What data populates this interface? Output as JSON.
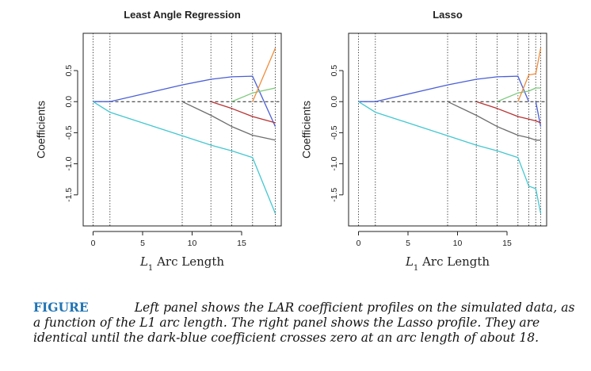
{
  "caption": {
    "label": "FIGURE",
    "text": "Left panel shows the LAR coefficient profiles on the simulated data, as a function of the L1 arc length. The right panel shows the Lasso profile. They are identical until the dark-blue coefficient crosses zero at an arc length of about 18."
  },
  "chart_data": [
    {
      "type": "line",
      "title": "Least Angle Regression",
      "xlabel": "L1 Arc Length",
      "ylabel": "Coefficients",
      "xlim": [
        -1,
        19
      ],
      "ylim": [
        -2.0,
        1.1
      ],
      "xticks": [
        0,
        5,
        10,
        15
      ],
      "yticks": [
        -1.5,
        -1.0,
        -0.5,
        0.0,
        0.5
      ],
      "ytick_labels": [
        "-1.5",
        "-1.0",
        "-0.5",
        "0.0",
        "0.5"
      ],
      "zero_line": true,
      "step_lines_x": [
        0,
        1.7,
        9.0,
        11.9,
        14.0,
        16.1,
        18.4
      ],
      "series": [
        {
          "color": "#4a5fd6",
          "x": [
            0,
            1.7,
            9.0,
            11.9,
            14.0,
            16.1,
            18.4
          ],
          "y": [
            0,
            0,
            0.27,
            0.36,
            0.4,
            0.41,
            -0.4
          ]
        },
        {
          "color": "#43c7d1",
          "x": [
            0,
            1.7,
            9.0,
            11.9,
            14.0,
            16.1,
            18.4
          ],
          "y": [
            0,
            -0.17,
            -0.55,
            -0.7,
            -0.79,
            -0.9,
            -1.8
          ]
        },
        {
          "color": "#6e6e6e",
          "x": [
            9.0,
            11.9,
            14.0,
            16.1,
            18.4
          ],
          "y": [
            0,
            -0.22,
            -0.4,
            -0.54,
            -0.62
          ]
        },
        {
          "color": "#b83232",
          "x": [
            11.9,
            14.0,
            16.1,
            18.4
          ],
          "y": [
            0,
            -0.11,
            -0.24,
            -0.34
          ]
        },
        {
          "color": "#7cc87c",
          "x": [
            14.0,
            16.1,
            18.4
          ],
          "y": [
            0,
            0.14,
            0.22
          ]
        },
        {
          "color": "#f08c3a",
          "x": [
            16.1,
            18.4
          ],
          "y": [
            0,
            0.86
          ]
        }
      ]
    },
    {
      "type": "line",
      "title": "Lasso",
      "xlabel": "L1 Arc Length",
      "ylabel": "Coefficients",
      "xlim": [
        -1,
        19
      ],
      "ylim": [
        -2.0,
        1.1
      ],
      "xticks": [
        0,
        5,
        10,
        15
      ],
      "yticks": [
        -1.5,
        -1.0,
        -0.5,
        0.0,
        0.5
      ],
      "ytick_labels": [
        "-1.5",
        "-1.0",
        "-0.5",
        "0.0",
        "0.5"
      ],
      "zero_line": true,
      "step_lines_x": [
        0,
        1.7,
        9.0,
        11.9,
        14.0,
        16.1,
        17.2,
        17.9,
        18.4
      ],
      "series": [
        {
          "color": "#4a5fd6",
          "x": [
            0,
            1.7,
            9.0,
            11.9,
            14.0,
            16.1,
            17.2
          ],
          "y": [
            0,
            0,
            0.27,
            0.36,
            0.4,
            0.41,
            0
          ]
        },
        {
          "color": "#4a5fd6",
          "x": [
            17.9,
            18.4
          ],
          "y": [
            0,
            -0.4
          ]
        },
        {
          "color": "#43c7d1",
          "x": [
            0,
            1.7,
            9.0,
            11.9,
            14.0,
            16.1,
            17.2,
            17.9,
            18.4
          ],
          "y": [
            0,
            -0.17,
            -0.55,
            -0.7,
            -0.79,
            -0.9,
            -1.36,
            -1.4,
            -1.8
          ]
        },
        {
          "color": "#6e6e6e",
          "x": [
            9.0,
            11.9,
            14.0,
            16.1,
            17.2,
            17.9,
            18.4
          ],
          "y": [
            0,
            -0.22,
            -0.4,
            -0.54,
            -0.58,
            -0.62,
            -0.62
          ]
        },
        {
          "color": "#b83232",
          "x": [
            11.9,
            14.0,
            16.1,
            17.2,
            17.9,
            18.4
          ],
          "y": [
            0,
            -0.11,
            -0.24,
            -0.28,
            -0.31,
            -0.34
          ]
        },
        {
          "color": "#7cc87c",
          "x": [
            14.0,
            16.1,
            17.2,
            17.9,
            18.4
          ],
          "y": [
            0,
            0.14,
            0.17,
            0.22,
            0.22
          ]
        },
        {
          "color": "#f08c3a",
          "x": [
            16.1,
            17.2,
            17.9,
            18.4
          ],
          "y": [
            0,
            0.43,
            0.45,
            0.86
          ]
        }
      ]
    }
  ]
}
